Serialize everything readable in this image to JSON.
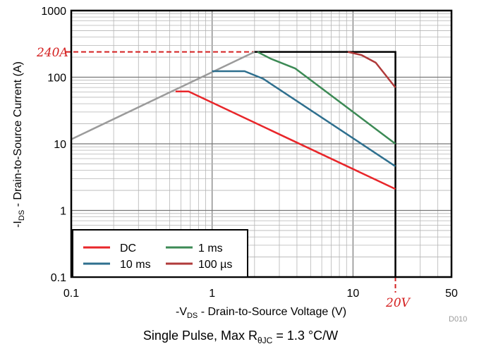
{
  "chart_data": {
    "type": "line",
    "xlabel_prefix": "-V",
    "xlabel_sub": "DS",
    "xlabel_suffix": " - Drain-to-Source Voltage (V)",
    "ylabel_prefix": "-I",
    "ylabel_sub": "DS",
    "ylabel_suffix": " - Drain-to-Source Current (A)",
    "x_scale": "log",
    "y_scale": "log",
    "xlim": [
      0.1,
      50
    ],
    "ylim": [
      0.1,
      1000
    ],
    "x_tick_labels": [
      {
        "value": 0.1,
        "label": "0.1"
      },
      {
        "value": 1,
        "label": "1"
      },
      {
        "value": 10,
        "label": "10"
      },
      {
        "value": 50,
        "label": "50"
      }
    ],
    "y_tick_labels": [
      {
        "value": 0.1,
        "label": "0.1"
      },
      {
        "value": 1,
        "label": "1"
      },
      {
        "value": 10,
        "label": "10"
      },
      {
        "value": 100,
        "label": "100"
      },
      {
        "value": 1000,
        "label": "1000"
      }
    ],
    "grid": true,
    "legend_position": "bottom-left",
    "limit_line": {
      "name": "RDS(on) limit",
      "color": "#9b9b9b",
      "x": [
        0.1,
        2.0
      ],
      "y": [
        11.7,
        240
      ]
    },
    "series": [
      {
        "name": "DC",
        "color": "#e8262a",
        "x": [
          0.55,
          0.68,
          20
        ],
        "y": [
          61,
          61,
          2.1
        ]
      },
      {
        "name": "10 ms",
        "color": "#2e6f8e",
        "x": [
          1.0,
          1.7,
          2.3,
          20
        ],
        "y": [
          123,
          123,
          95,
          4.6
        ]
      },
      {
        "name": "1 ms",
        "color": "#3c8a55",
        "x": [
          2.1,
          2.6,
          3.9,
          20
        ],
        "y": [
          240,
          190,
          135,
          10
        ]
      },
      {
        "name": "100 µs",
        "color": "#b03a3a",
        "x": [
          9.2,
          11.5,
          14.5,
          20
        ],
        "y": [
          240,
          215,
          165,
          70
        ]
      }
    ],
    "annotations": {
      "current_limit": {
        "label": "240A",
        "value": 240,
        "color": "#d42020"
      },
      "voltage_limit": {
        "label": "20V",
        "value": 20,
        "color": "#d42020"
      }
    },
    "figure_id": "D010",
    "caption_prefix": "Single Pulse, Max R",
    "caption_sub": "θJC",
    "caption_suffix": " = 1.3 °C/W"
  }
}
